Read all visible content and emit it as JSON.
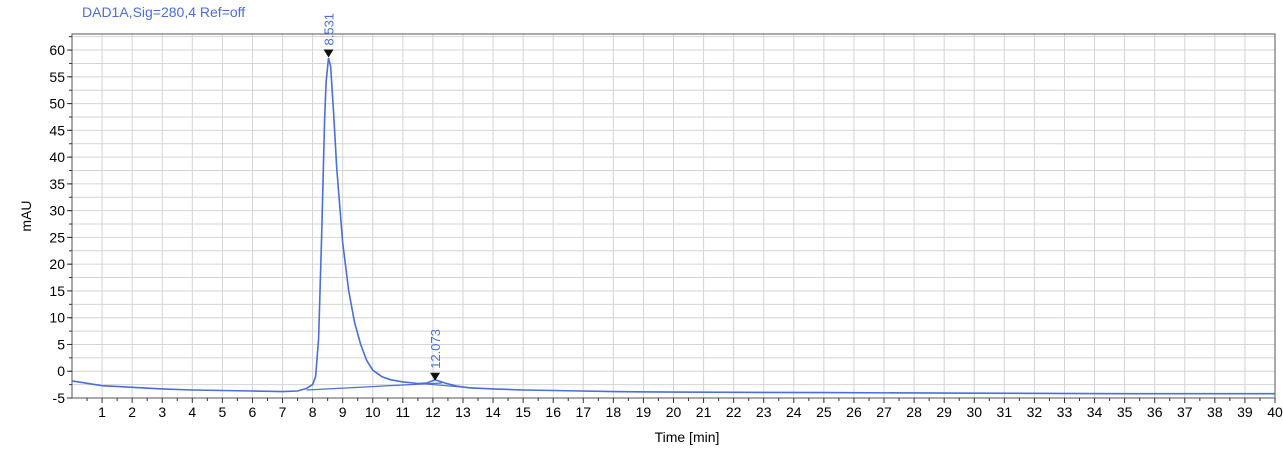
{
  "chart_data": {
    "type": "line",
    "title": "DAD1A,Sig=280,4  Ref=off",
    "xlabel": "Time [min]",
    "ylabel": "mAU",
    "xlim": [
      0,
      40
    ],
    "ylim": [
      -5,
      63
    ],
    "x_ticks": [
      1,
      2,
      3,
      4,
      5,
      6,
      7,
      8,
      9,
      10,
      11,
      12,
      13,
      14,
      15,
      16,
      17,
      18,
      19,
      20,
      21,
      22,
      23,
      24,
      25,
      26,
      27,
      28,
      29,
      30,
      31,
      32,
      33,
      34,
      35,
      36,
      37,
      38,
      39,
      40
    ],
    "y_ticks": [
      -5,
      0,
      5,
      10,
      15,
      20,
      25,
      30,
      35,
      40,
      45,
      50,
      55,
      60
    ],
    "grid": true,
    "line_color": "#4a6fd6",
    "series": [
      {
        "x": [
          0,
          1,
          2,
          3,
          4,
          5,
          6,
          7,
          7.5,
          7.8,
          8.0,
          8.1,
          8.2,
          8.3,
          8.4,
          8.45,
          8.53,
          8.6,
          8.7,
          8.8,
          9.0,
          9.2,
          9.4,
          9.6,
          9.8,
          10.0,
          10.3,
          10.6,
          11.0,
          11.5,
          11.8,
          12.073,
          12.4,
          12.8,
          13.2,
          14,
          15,
          16,
          18,
          20,
          25,
          30,
          35,
          40
        ],
        "y": [
          -1.8,
          -2.7,
          -3.0,
          -3.3,
          -3.5,
          -3.6,
          -3.7,
          -3.8,
          -3.7,
          -3.2,
          -2.5,
          -1.0,
          6.0,
          25.0,
          47.0,
          54.0,
          58.5,
          57.0,
          48.0,
          38.0,
          24.0,
          15.0,
          9.0,
          5.0,
          2.0,
          0.2,
          -1.0,
          -1.6,
          -2.0,
          -2.3,
          -2.2,
          -1.6,
          -2.2,
          -2.8,
          -3.1,
          -3.3,
          -3.5,
          -3.6,
          -3.8,
          -3.9,
          -4.0,
          -4.1,
          -4.2,
          -4.2
        ]
      }
    ],
    "baselines": [
      {
        "x": [
          7.8,
          12.3
        ],
        "y": [
          -3.5,
          -2.2
        ]
      },
      {
        "x": [
          11.6,
          13.5
        ],
        "y": [
          -2.3,
          -3.2
        ]
      }
    ],
    "peaks": [
      {
        "label": "8.531",
        "x": 8.53,
        "y": 58.8
      },
      {
        "label": "12.073",
        "x": 12.073,
        "y": -1.6
      }
    ]
  }
}
